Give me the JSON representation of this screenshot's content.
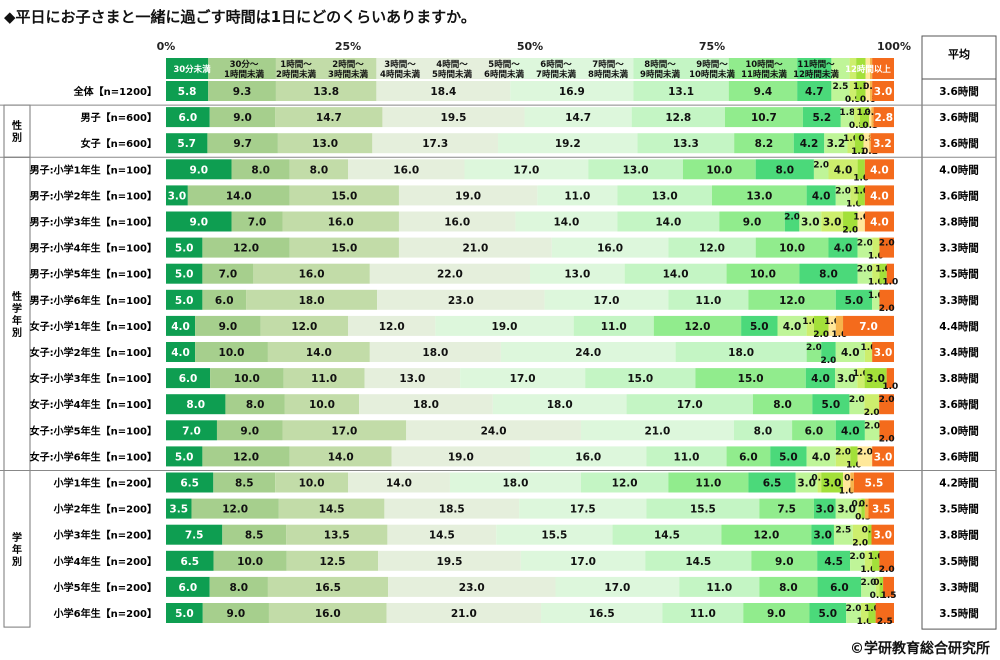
{
  "title": "◆平日にお子さまと一緒に過ごす時間は1日にどのくらいありますか。",
  "credit": "©学研教育総合研究所",
  "chart_data": {
    "type": "bar",
    "orientation": "horizontal",
    "stacked": "percent",
    "x_ticks": [
      "0%",
      "25%",
      "50%",
      "75%",
      "100%"
    ],
    "xlim": [
      0,
      100
    ],
    "legend_placement": "top",
    "average_header": "平均",
    "categories": [
      "30分未満",
      "30分～\n1時間未満",
      "1時間～\n2時間未満",
      "2時間～\n3時間未満",
      "3時間～\n4時間未満",
      "4時間～\n5時間未満",
      "5時間～\n6時間未満",
      "6時間～\n7時間未満",
      "7時間～\n8時間未満",
      "8時間～\n9時間未満",
      "9時間～\n10時間未満",
      "10時間～\n11時間未満",
      "11時間～\n12時間未満",
      "12時間以上"
    ],
    "colors": [
      "#0e9e51",
      "#a6cf8d",
      "#c2dca8",
      "#e5efdc",
      "#ddf7dc",
      "#c4f5c4",
      "#91ec8d",
      "#4bd97a",
      "#bff598",
      "#cdee6d",
      "#a3e03a",
      "#ffe89a",
      "#f6b44c",
      "#f46b1c"
    ],
    "groups": [
      {
        "label": "",
        "rows": [
          0
        ]
      },
      {
        "label": "性別",
        "rows": [
          1,
          2
        ]
      },
      {
        "label": "性学年別",
        "rows": [
          3,
          4,
          5,
          6,
          7,
          8,
          9,
          10,
          11,
          12,
          13,
          14
        ]
      },
      {
        "label": "学年別",
        "rows": [
          15,
          16,
          17,
          18,
          19,
          20
        ]
      }
    ],
    "rows": [
      {
        "label": "全体【n=1200】",
        "values": [
          5.8,
          9.3,
          13.8,
          18.4,
          16.9,
          13.1,
          9.4,
          4.7,
          2.5,
          0.9,
          1.3,
          0.6,
          0.3,
          3.0
        ],
        "average": "3.6時間"
      },
      {
        "label": "男子【n=600】",
        "values": [
          6.0,
          9.0,
          14.7,
          19.5,
          14.7,
          12.8,
          10.7,
          5.2,
          1.8,
          0.8,
          1.3,
          0.3,
          0.3,
          2.8
        ],
        "average": "3.6時間"
      },
      {
        "label": "女子【n=600】",
        "values": [
          5.7,
          9.7,
          13.0,
          17.3,
          19.2,
          13.3,
          8.2,
          4.2,
          3.2,
          1.0,
          1.2,
          0.8,
          0.2,
          3.2
        ],
        "average": "3.6時間"
      },
      {
        "label": "男子:小学1年生【n=100】",
        "values": [
          9.0,
          8.0,
          8.0,
          16.0,
          17.0,
          13.0,
          10.0,
          8.0,
          2.0,
          4.0,
          1.0,
          0,
          0,
          4.0
        ],
        "average": "4.0時間"
      },
      {
        "label": "男子:小学2年生【n=100】",
        "values": [
          3.0,
          14.0,
          15.0,
          19.0,
          11.0,
          13.0,
          13.0,
          4.0,
          2.0,
          1.0,
          1.0,
          0,
          0,
          4.0
        ],
        "average": "3.6時間"
      },
      {
        "label": "男子:小学3年生【n=100】",
        "values": [
          9.0,
          7.0,
          16.0,
          16.0,
          14.0,
          14.0,
          9.0,
          2.0,
          3.0,
          3.0,
          2.0,
          1.0,
          0,
          4.0
        ],
        "average": "3.8時間"
      },
      {
        "label": "男子:小学4年生【n=100】",
        "values": [
          5.0,
          12.0,
          15.0,
          21.0,
          16.0,
          12.0,
          10.0,
          4.0,
          2.0,
          1.0,
          0,
          0,
          0,
          2.0
        ],
        "average": "3.3時間"
      },
      {
        "label": "男子:小学5年生【n=100】",
        "values": [
          5.0,
          7.0,
          16.0,
          22.0,
          13.0,
          14.0,
          10.0,
          8.0,
          2.0,
          1.0,
          1.0,
          0,
          0,
          1.0
        ],
        "average": "3.5時間"
      },
      {
        "label": "男子:小学6年生【n=100】",
        "values": [
          5.0,
          6.0,
          18.0,
          23.0,
          17.0,
          11.0,
          12.0,
          5.0,
          1.0,
          0,
          0,
          0,
          0,
          2.0
        ],
        "average": "3.3時間"
      },
      {
        "label": "女子:小学1年生【n=100】",
        "values": [
          4.0,
          9.0,
          12.0,
          12.0,
          19.0,
          11.0,
          12.0,
          5.0,
          4.0,
          1.0,
          2.0,
          1.0,
          1.0,
          7.0
        ],
        "average": "4.4時間"
      },
      {
        "label": "女子:小学2年生【n=100】",
        "values": [
          4.0,
          10.0,
          14.0,
          18.0,
          24.0,
          18.0,
          2.0,
          2.0,
          4.0,
          1.0,
          0,
          0,
          0,
          3.0
        ],
        "average": "3.4時間"
      },
      {
        "label": "女子:小学3年生【n=100】",
        "values": [
          6.0,
          10.0,
          11.0,
          13.0,
          17.0,
          15.0,
          15.0,
          4.0,
          3.0,
          1.0,
          3.0,
          0,
          0,
          1.0
        ],
        "average": "3.8時間"
      },
      {
        "label": "女子:小学4年生【n=100】",
        "values": [
          8.0,
          8.0,
          10.0,
          18.0,
          18.0,
          17.0,
          8.0,
          5.0,
          2.0,
          2.0,
          0,
          0,
          0,
          2.0
        ],
        "average": "3.6時間"
      },
      {
        "label": "女子:小学5年生【n=100】",
        "values": [
          7.0,
          9.0,
          17.0,
          24.0,
          21.0,
          8.0,
          6.0,
          4.0,
          2.0,
          0,
          0,
          0,
          0,
          2.0
        ],
        "average": "3.0時間"
      },
      {
        "label": "女子:小学6年生【n=100】",
        "values": [
          5.0,
          12.0,
          14.0,
          19.0,
          16.0,
          11.0,
          6.0,
          5.0,
          4.0,
          2.0,
          1.0,
          2.0,
          0,
          3.0
        ],
        "average": "3.6時間"
      },
      {
        "label": "小学1年生【n=200】",
        "values": [
          6.5,
          8.5,
          10.0,
          14.0,
          18.0,
          12.0,
          11.0,
          6.5,
          3.0,
          0.5,
          3.0,
          1.0,
          0.5,
          5.5
        ],
        "average": "4.2時間"
      },
      {
        "label": "小学2年生【n=200】",
        "values": [
          3.5,
          12.0,
          14.5,
          18.5,
          17.5,
          15.5,
          7.5,
          3.0,
          3.0,
          0.5,
          0.5,
          0,
          0.5,
          3.5
        ],
        "average": "3.5時間"
      },
      {
        "label": "小学3年生【n=200】",
        "values": [
          7.5,
          8.5,
          13.5,
          14.5,
          15.5,
          14.5,
          12.0,
          3.0,
          2.5,
          2.0,
          0.5,
          0,
          0,
          3.0
        ],
        "average": "3.8時間"
      },
      {
        "label": "小学4年生【n=200】",
        "values": [
          6.5,
          10.0,
          12.5,
          19.5,
          17.0,
          14.5,
          9.0,
          4.5,
          2.0,
          1.0,
          1.0,
          0,
          0,
          2.0
        ],
        "average": "3.5時間"
      },
      {
        "label": "小学5年生【n=200】",
        "values": [
          6.0,
          8.0,
          16.5,
          23.0,
          17.0,
          11.0,
          8.0,
          6.0,
          2.0,
          0.5,
          0.5,
          0,
          0,
          1.5
        ],
        "average": "3.3時間"
      },
      {
        "label": "小学6年生【n=200】",
        "values": [
          5.0,
          9.0,
          16.0,
          21.0,
          16.5,
          11.0,
          9.0,
          5.0,
          2.0,
          1.0,
          1.0,
          0,
          0,
          2.5
        ],
        "average": "3.5時間"
      }
    ]
  }
}
